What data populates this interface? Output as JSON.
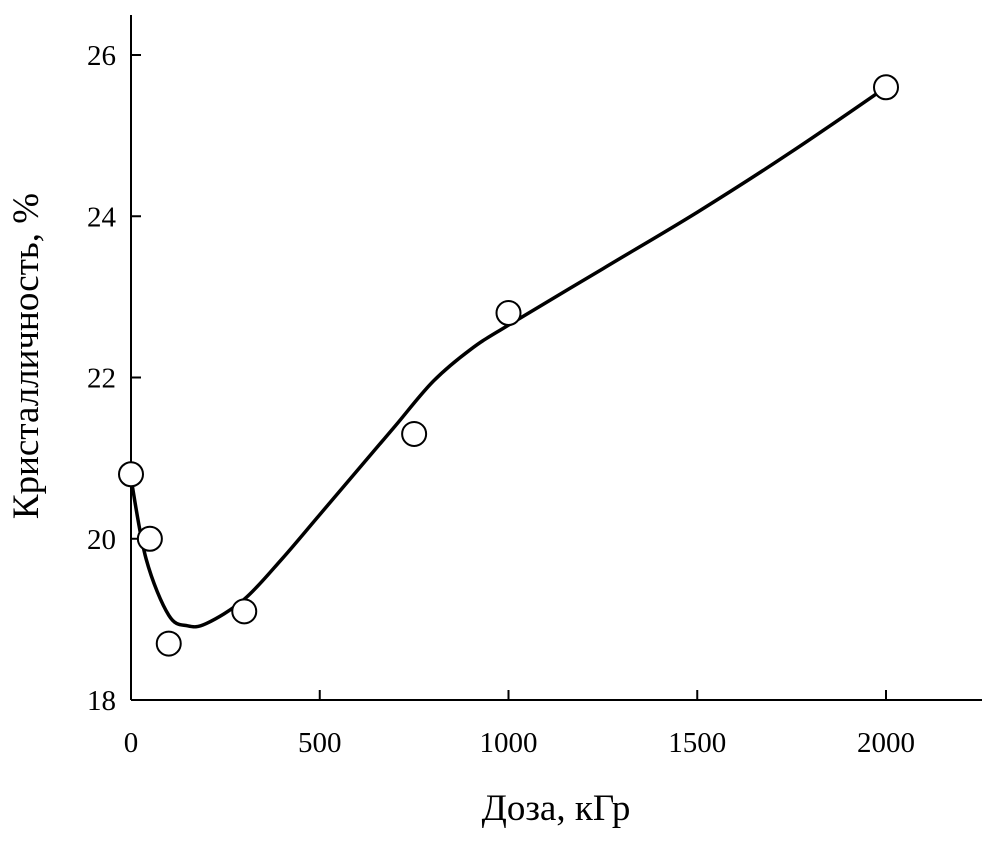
{
  "chart_data": {
    "type": "scatter",
    "xlabel": "Доза, кГр",
    "ylabel": "Кристалличность, %",
    "xlim": [
      0,
      2250
    ],
    "ylim": [
      18,
      26.5
    ],
    "xticks": [
      0,
      500,
      1000,
      1500,
      2000
    ],
    "yticks": [
      18,
      20,
      22,
      24,
      26
    ],
    "grid": false,
    "series": [
      {
        "marker": "open-circle",
        "x": [
          0,
          50,
          100,
          300,
          750,
          1000,
          2000
        ],
        "y": [
          20.8,
          20.0,
          18.7,
          19.1,
          21.3,
          22.8,
          25.6
        ]
      }
    ],
    "fit_curve": {
      "x": [
        0,
        40,
        100,
        150,
        200,
        300,
        400,
        500,
        600,
        700,
        800,
        900,
        1000,
        1250,
        1500,
        1750,
        2000
      ],
      "y": [
        20.75,
        19.75,
        19.05,
        18.92,
        18.95,
        19.25,
        19.75,
        20.3,
        20.85,
        21.4,
        21.95,
        22.35,
        22.65,
        23.35,
        24.05,
        24.8,
        25.6
      ]
    }
  }
}
